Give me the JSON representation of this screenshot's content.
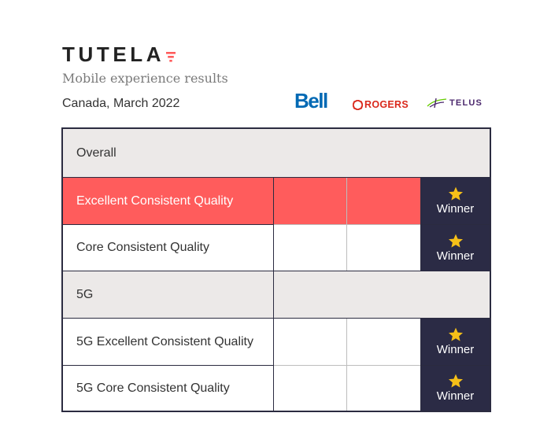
{
  "header": {
    "brand": "TUTELA",
    "subtitle": "Mobile experience results",
    "region": "Canada, March 2022"
  },
  "operators": {
    "bell": "Bell",
    "rogers": "ROGERS",
    "telus": "TELUS"
  },
  "table": {
    "rows": [
      {
        "label": "Overall",
        "type": "section",
        "winner": false
      },
      {
        "label": "Excellent Consistent Quality",
        "type": "highlight",
        "winner": true,
        "winner_label": "Winner"
      },
      {
        "label": "Core Consistent Quality",
        "type": "metric",
        "winner": true,
        "winner_label": "Winner"
      },
      {
        "label": "5G",
        "type": "section",
        "winner": false
      },
      {
        "label": "5G Excellent Consistent Quality",
        "type": "metric",
        "winner": true,
        "winner_label": "Winner"
      },
      {
        "label": "5G Core Consistent Quality",
        "type": "metric",
        "winner": true,
        "winner_label": "Winner"
      }
    ]
  },
  "colors": {
    "highlight": "#ff5c5c",
    "winner_cell": "#2b2b45",
    "star": "#f6c018",
    "section_bg": "#ece9e8",
    "bell_blue": "#0069b4",
    "rogers_red": "#da291c",
    "telus_purple": "#4b286d"
  },
  "icons": {
    "brand_mark": "funnel-mark-icon",
    "winner": "star-icon",
    "rogers": "rogers-logo-icon",
    "telus": "telus-swoosh-icon"
  }
}
